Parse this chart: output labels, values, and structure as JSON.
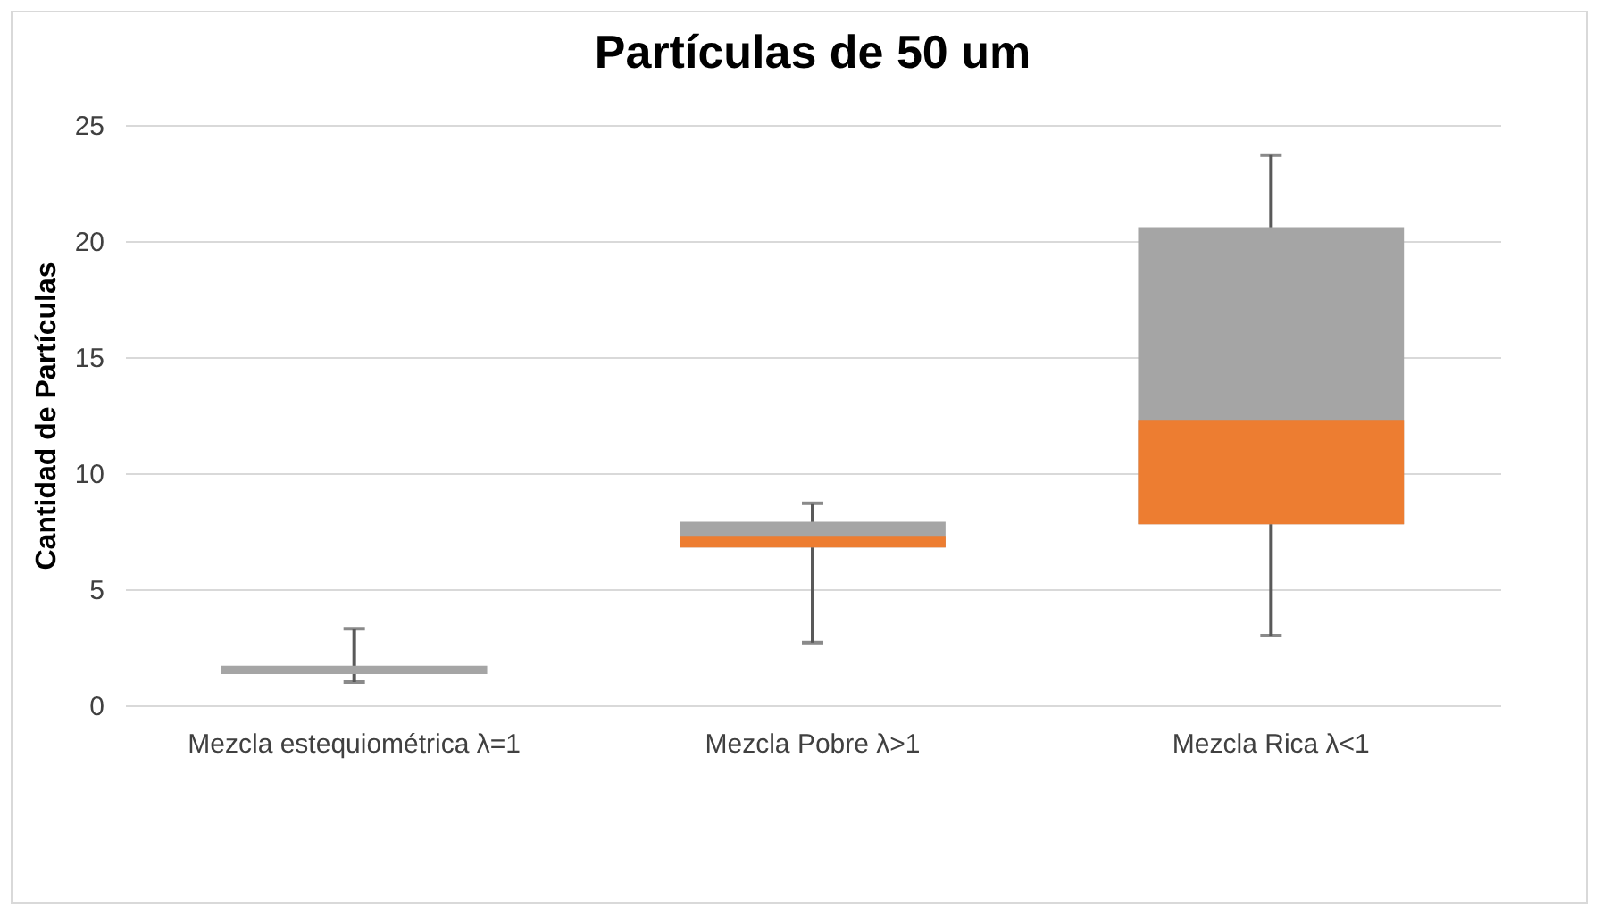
{
  "chart_data": {
    "type": "box",
    "title": "Partículas de 50 um",
    "ylabel": "Cantidad de Partículas",
    "categories": [
      "Mezcla estequiométrica λ=1",
      "Mezcla Pobre λ>1",
      "Mezcla Rica λ<1"
    ],
    "colors": [
      "#ed7d31",
      "#ed7d31",
      "#ed7d31"
    ],
    "series": [
      {
        "color": "#a5a5a5",
        "boxes": [
          {
            "low": 1.0,
            "q1": 1.35,
            "median": 1.35,
            "q3": 1.7,
            "high": 3.3
          },
          {
            "low": 2.7,
            "q1": 6.8,
            "median": 7.3,
            "q3": 7.9,
            "high": 8.7
          },
          {
            "low": 3.0,
            "q1": 7.8,
            "median": 12.3,
            "q3": 20.6,
            "high": 23.7
          }
        ]
      }
    ],
    "ylim": [
      0,
      25
    ],
    "yticks": [
      0,
      5,
      10,
      15,
      20,
      25
    ],
    "grid": "y"
  }
}
